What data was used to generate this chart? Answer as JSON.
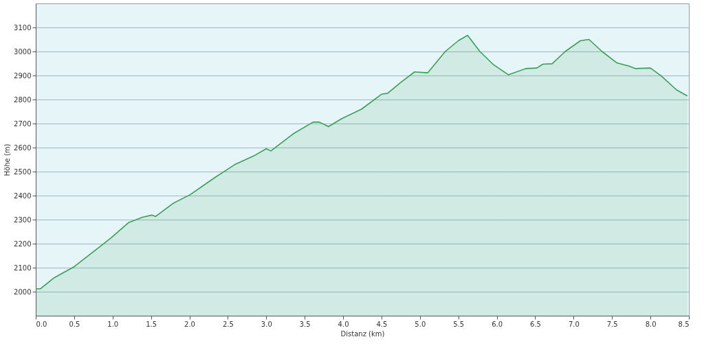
{
  "chart_data": {
    "type": "area",
    "xlabel": "Distanz  (km)",
    "ylabel": "Höhe (m)",
    "x": [
      0,
      0.06,
      0.24,
      0.49,
      0.7,
      0.98,
      1.21,
      1.39,
      1.51,
      1.56,
      1.79,
      2.01,
      2.33,
      2.59,
      2.83,
      3.0,
      3.06,
      3.35,
      3.61,
      3.69,
      3.81,
      3.98,
      4.24,
      4.5,
      4.58,
      4.75,
      4.93,
      5.1,
      5.33,
      5.5,
      5.62,
      5.78,
      5.95,
      6.15,
      6.38,
      6.52,
      6.6,
      6.72,
      6.89,
      7.09,
      7.2,
      7.37,
      7.56,
      7.72,
      7.8,
      8.0,
      8.14,
      8.34,
      8.48
    ],
    "series": [
      {
        "color": "#3a9e58",
        "values": [
          2012,
          2012,
          2058,
          2102,
          2154,
          2224,
          2288,
          2310,
          2319,
          2313,
          2368,
          2404,
          2475,
          2529,
          2564,
          2595,
          2586,
          2657,
          2706,
          2706,
          2687,
          2720,
          2760,
          2822,
          2826,
          2871,
          2915,
          2911,
          3000,
          3045,
          3067,
          3000,
          2947,
          2903,
          2929,
          2931,
          2947,
          2949,
          3000,
          3045,
          3050,
          3000,
          2953,
          2939,
          2929,
          2931,
          2898,
          2840,
          2815
        ]
      }
    ],
    "xlim": [
      0,
      8.5
    ],
    "xticks": [
      {
        "value": 0,
        "label": "0.0"
      },
      0.5,
      {
        "value": 1,
        "label": "1.0"
      },
      1.5,
      {
        "value": 2,
        "label": "2.0"
      },
      2.5,
      {
        "value": 3,
        "label": "3.0"
      },
      3.5,
      {
        "value": 4,
        "label": "4.0"
      },
      4.5,
      {
        "value": 5,
        "label": "5.0"
      },
      5.5,
      {
        "value": 6,
        "label": "6.0"
      },
      6.5,
      {
        "value": 7,
        "label": "7.0"
      },
      7.5,
      {
        "value": 8,
        "label": "8.0"
      },
      8.5
    ],
    "ylim": [
      1900,
      3200
    ],
    "yticks": [
      2000,
      2100,
      2200,
      2300,
      2400,
      2500,
      2600,
      2700,
      2800,
      2900,
      3000,
      3100
    ],
    "grid": "y"
  }
}
